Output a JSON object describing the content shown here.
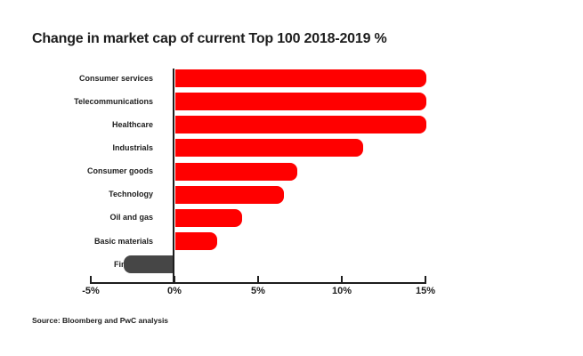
{
  "title": "Change in market cap of current Top 100 2018-2019 %",
  "source": "Source: Bloomberg and PwC analysis",
  "chart_data": {
    "type": "bar",
    "orientation": "horizontal",
    "title": "Change in market cap of current Top 100 2018-2019 %",
    "categories": [
      "Consumer services",
      "Telecommunications",
      "Healthcare",
      "Industrials",
      "Consumer goods",
      "Technology",
      "Oil and gas",
      "Basic materials",
      "Financials"
    ],
    "values": [
      15,
      15,
      15,
      11.2,
      7.3,
      6.5,
      4,
      2.5,
      -3
    ],
    "unit": "%",
    "xlim": [
      -5,
      15
    ],
    "x_ticks": [
      -5,
      0,
      5,
      10,
      15
    ],
    "x_tick_labels": [
      "-5%",
      "0%",
      "5%",
      "10%",
      "15%"
    ],
    "grid": false,
    "legend": false,
    "colors": {
      "bar_positive": "#ff0000",
      "bar_negative": "#464646",
      "axis": "#1d1d1d",
      "text": "#1d1d1d"
    },
    "source": "Source: Bloomberg and PwC analysis"
  }
}
